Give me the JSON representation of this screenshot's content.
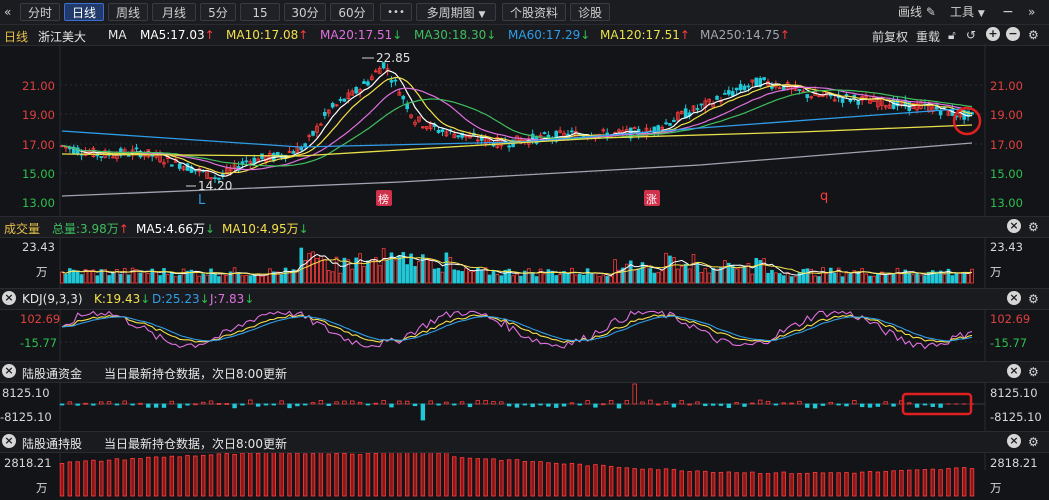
{
  "toolbar": {
    "collapse_icon": "«",
    "tabs": [
      {
        "label": "分时",
        "active": false
      },
      {
        "label": "日线",
        "active": true
      },
      {
        "label": "周线",
        "active": false
      },
      {
        "label": "月线",
        "active": false
      },
      {
        "label": "5分",
        "active": false
      },
      {
        "label": "15分",
        "active": false
      },
      {
        "label": "30分",
        "active": false
      },
      {
        "label": "60分",
        "active": false
      }
    ],
    "more_label": "•••",
    "multi_period_label": "多周期图",
    "stock_info_label": "个股资料",
    "diagnose_label": "诊股",
    "draw_label": "画线",
    "tools_label": "工具",
    "expand_icon": "»"
  },
  "main_info": {
    "period": "日线",
    "stock_name": "浙江美大",
    "ma_label": "MA",
    "ma5": "MA5:17.03",
    "ma10": "MA10:17.08",
    "ma20": "MA20:17.51",
    "ma30": "MA30:18.30",
    "ma60": "MA60:17.29",
    "ma120": "MA120:17.51",
    "ma250": "MA250:14.75",
    "adjust_label": "前复权",
    "reload_label": "重载"
  },
  "price_axis": [
    "21.00",
    "19.00",
    "17.00",
    "15.00",
    "13.00"
  ],
  "price_annotations": {
    "high": "22.85",
    "low": "14.20",
    "marker_l": "L",
    "badge1": "榜",
    "badge2": "涨",
    "marker_q": "q"
  },
  "volume_info": {
    "title": "成交量",
    "total": "总量:3.98万",
    "ma5": "MA5:4.66万",
    "ma10": "MA10:4.95万"
  },
  "volume_axis": {
    "top": "23.43",
    "unit": "万"
  },
  "kdj_info": {
    "title": "KDJ(9,3,3)",
    "k": "K:19.43",
    "d": "D:25.23",
    "j": "J:7.83"
  },
  "kdj_axis": {
    "top": "102.69",
    "bottom": "-15.77"
  },
  "hsgt_fund_info": {
    "title": "陆股通资金",
    "note": "当日最新持仓数据，次日8:00更新"
  },
  "hsgt_fund_axis": {
    "top": "8125.10",
    "bottom": "-8125.10"
  },
  "hsgt_hold_info": {
    "title": "陆股通持股",
    "note": "当日最新持仓数据，次日8:00更新"
  },
  "hsgt_hold_axis": {
    "top": "2818.21",
    "unit": "万"
  },
  "colors": {
    "up": "#ff3b3b",
    "down": "#20c8d8",
    "ma5": "#ffffff",
    "ma10": "#f5e04a",
    "ma20": "#e070e0",
    "ma30": "#3fbf5f",
    "ma60": "#2f9de8",
    "ma120": "#e8e04a",
    "ma250": "#a0a4b0"
  },
  "chart_data": {
    "type": "candlestick",
    "ylim": [
      13.0,
      22.85
    ],
    "notable_high": 22.85,
    "notable_low": 14.2,
    "last_close_region": 18.9
  }
}
